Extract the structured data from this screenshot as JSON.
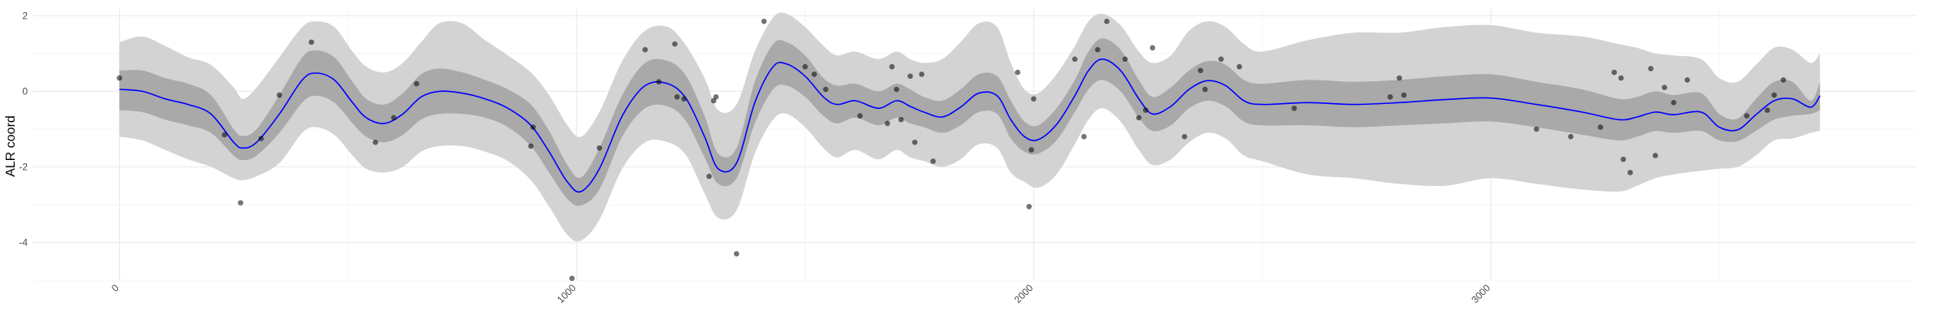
{
  "chart_data": {
    "type": "line",
    "title": "",
    "xlabel": "",
    "ylabel": "ALR coord",
    "xlim": [
      -190,
      3930
    ],
    "ylim": [
      -5,
      2.2
    ],
    "x_ticks": [
      0,
      1000,
      2000,
      3000
    ],
    "x_tick_labels": [
      "0",
      "1000",
      "2000",
      "3000"
    ],
    "y_ticks": [
      -4,
      -2,
      0,
      2
    ],
    "y_tick_labels": [
      "-4",
      "-2",
      "0",
      "2"
    ],
    "grid": true,
    "legend": "none",
    "colors": {
      "outer_band": "#d3d3d3",
      "inner_band": "#a9a9a9",
      "mean_line": "#0000ff",
      "points": "#000000",
      "grid_major": "#ebebeb",
      "grid_minor": "#f5f5f5"
    },
    "mean_curve": {
      "x": [
        0,
        50,
        100,
        150,
        200,
        250,
        270,
        300,
        350,
        400,
        430,
        470,
        510,
        540,
        580,
        620,
        660,
        700,
        750,
        800,
        850,
        900,
        940,
        980,
        1010,
        1050,
        1100,
        1150,
        1200,
        1240,
        1280,
        1310,
        1350,
        1390,
        1430,
        1460,
        1500,
        1540,
        1570,
        1610,
        1660,
        1700,
        1730,
        1760,
        1800,
        1840,
        1880,
        1920,
        1950,
        1980,
        2010,
        2050,
        2090,
        2120,
        2150,
        2190,
        2230,
        2260,
        2300,
        2340,
        2380,
        2420,
        2460,
        2500,
        2600,
        2700,
        2800,
        2900,
        3000,
        3100,
        3200,
        3280,
        3320,
        3360,
        3400,
        3460,
        3500,
        3540,
        3580,
        3620,
        3660,
        3700,
        3720
      ],
      "mean": [
        0.05,
        0,
        -0.2,
        -0.35,
        -0.6,
        -1.35,
        -1.5,
        -1.35,
        -0.6,
        0.3,
        0.48,
        0.3,
        -0.3,
        -0.7,
        -0.85,
        -0.6,
        -0.15,
        0,
        -0.05,
        -0.2,
        -0.45,
        -0.9,
        -1.6,
        -2.4,
        -2.65,
        -2.05,
        -0.65,
        0.15,
        0.2,
        -0.2,
        -1.2,
        -2.05,
        -1.9,
        -0.3,
        0.65,
        0.72,
        0.4,
        -0.15,
        -0.35,
        -0.25,
        -0.45,
        -0.25,
        -0.4,
        -0.55,
        -0.68,
        -0.42,
        -0.05,
        -0.12,
        -0.75,
        -1.2,
        -1.28,
        -0.88,
        -0.12,
        0.55,
        0.85,
        0.55,
        -0.2,
        -0.6,
        -0.4,
        0.05,
        0.28,
        0.15,
        -0.25,
        -0.35,
        -0.3,
        -0.35,
        -0.3,
        -0.22,
        -0.18,
        -0.35,
        -0.55,
        -0.75,
        -0.68,
        -0.55,
        -0.62,
        -0.55,
        -0.95,
        -1.02,
        -0.62,
        -0.25,
        -0.2,
        -0.42,
        -0.12
      ],
      "inner_lower": [
        -0.5,
        -0.55,
        -0.75,
        -0.9,
        -1.1,
        -1.7,
        -1.82,
        -1.7,
        -1.1,
        -0.3,
        -0.12,
        -0.3,
        -0.85,
        -1.2,
        -1.35,
        -1.15,
        -0.75,
        -0.6,
        -0.6,
        -0.7,
        -0.95,
        -1.45,
        -2.15,
        -2.85,
        -3.02,
        -2.6,
        -1.2,
        -0.45,
        -0.4,
        -0.8,
        -1.75,
        -2.45,
        -2.3,
        -0.85,
        0.05,
        0.15,
        -0.15,
        -0.65,
        -0.85,
        -0.7,
        -0.9,
        -0.7,
        -0.85,
        -0.95,
        -1.1,
        -0.9,
        -0.55,
        -0.6,
        -1.25,
        -1.6,
        -1.65,
        -1.3,
        -0.55,
        0.05,
        0.3,
        0,
        -0.7,
        -1.05,
        -0.9,
        -0.45,
        -0.25,
        -0.4,
        -0.8,
        -0.9,
        -0.9,
        -0.95,
        -0.9,
        -0.85,
        -0.8,
        -0.95,
        -1.15,
        -1.3,
        -1.2,
        -1.05,
        -1.1,
        -1.05,
        -1.3,
        -1.32,
        -1.05,
        -0.75,
        -0.65,
        -0.6,
        -0.5
      ],
      "inner_upper": [
        0.55,
        0.55,
        0.35,
        0.2,
        -0.1,
        -1.0,
        -1.18,
        -1.0,
        -0.1,
        0.9,
        1.08,
        0.9,
        0.25,
        -0.2,
        -0.35,
        -0.05,
        0.45,
        0.6,
        0.5,
        0.3,
        0.05,
        -0.35,
        -1.05,
        -1.95,
        -2.28,
        -1.5,
        -0.1,
        0.75,
        0.8,
        0.4,
        -0.65,
        -1.65,
        -1.5,
        0.25,
        1.25,
        1.3,
        0.95,
        0.35,
        0.15,
        0.2,
        0,
        0.2,
        0.05,
        -0.15,
        -0.25,
        0.05,
        0.45,
        0.4,
        -0.25,
        -0.8,
        -0.9,
        -0.45,
        0.3,
        1.05,
        1.4,
        1.1,
        0.3,
        -0.15,
        0.1,
        0.55,
        0.8,
        0.7,
        0.3,
        0.2,
        0.3,
        0.25,
        0.3,
        0.4,
        0.45,
        0.25,
        0.05,
        -0.2,
        -0.15,
        0,
        -0.1,
        -0.05,
        -0.6,
        -0.72,
        -0.2,
        0.25,
        0.25,
        -0.25,
        0.25
      ],
      "outer_lower": [
        -1.2,
        -1.3,
        -1.55,
        -1.8,
        -2.0,
        -2.3,
        -2.35,
        -2.25,
        -1.9,
        -1.1,
        -0.95,
        -1.15,
        -1.7,
        -2.05,
        -2.15,
        -2.0,
        -1.6,
        -1.45,
        -1.45,
        -1.6,
        -1.85,
        -2.35,
        -3.05,
        -3.8,
        -3.95,
        -3.4,
        -2.05,
        -1.35,
        -1.35,
        -1.7,
        -2.7,
        -3.35,
        -3.15,
        -1.65,
        -0.75,
        -0.6,
        -0.95,
        -1.5,
        -1.75,
        -1.55,
        -1.8,
        -1.55,
        -1.75,
        -1.85,
        -2.0,
        -1.8,
        -1.4,
        -1.5,
        -2.15,
        -2.4,
        -2.55,
        -2.2,
        -1.4,
        -0.75,
        -0.45,
        -0.8,
        -1.55,
        -1.95,
        -1.8,
        -1.35,
        -1.1,
        -1.25,
        -1.7,
        -1.85,
        -2.2,
        -2.3,
        -2.45,
        -2.5,
        -2.3,
        -2.45,
        -2.6,
        -2.65,
        -2.5,
        -2.3,
        -2.2,
        -2.1,
        -2.05,
        -2.0,
        -1.7,
        -1.3,
        -1.25,
        -1.1,
        -1.05
      ],
      "outer_upper": [
        1.3,
        1.45,
        1.2,
        0.9,
        0.7,
        0.1,
        -0.2,
        0.1,
        0.9,
        1.7,
        1.85,
        1.7,
        1.05,
        0.65,
        0.5,
        0.75,
        1.3,
        1.8,
        1.8,
        1.35,
        0.95,
        0.5,
        -0.1,
        -0.9,
        -1.2,
        -0.55,
        0.8,
        1.6,
        1.7,
        1.2,
        0.35,
        -0.5,
        -0.35,
        1.05,
        1.95,
        2.05,
        1.7,
        1.2,
        0.95,
        1.05,
        0.85,
        1.05,
        0.85,
        0.75,
        0.85,
        1.3,
        1.8,
        1.7,
        0.75,
        0.05,
        -0.05,
        0.45,
        1.2,
        1.85,
        2.05,
        1.75,
        1.05,
        0.75,
        0.95,
        1.6,
        1.85,
        1.7,
        1.25,
        1.05,
        1.35,
        1.55,
        1.55,
        1.7,
        1.75,
        1.55,
        1.45,
        1.25,
        1.15,
        1.0,
        0.95,
        0.85,
        0.35,
        0.25,
        0.7,
        1.15,
        1.1,
        0.75,
        1.0
      ]
    },
    "points": {
      "x": [
        0,
        230,
        265,
        310,
        350,
        420,
        560,
        600,
        650,
        900,
        905,
        990,
        1050,
        1150,
        1180,
        1215,
        1220,
        1235,
        1290,
        1300,
        1305,
        1350,
        1410,
        1500,
        1520,
        1545,
        1620,
        1680,
        1690,
        1700,
        1710,
        1730,
        1740,
        1755,
        1780,
        1965,
        1990,
        1995,
        2000,
        2090,
        2110,
        2140,
        2160,
        2200,
        2230,
        2245,
        2260,
        2330,
        2365,
        2375,
        2410,
        2450,
        2570,
        2780,
        2800,
        2810,
        3100,
        3175,
        3240,
        3270,
        3285,
        3290,
        3305,
        3350,
        3360,
        3380,
        3400,
        3430,
        3560,
        3605,
        3620,
        3640
      ],
      "y": [
        0.35,
        -1.15,
        -2.95,
        -1.25,
        -0.1,
        1.3,
        -1.35,
        -0.7,
        0.2,
        -1.45,
        -0.95,
        -4.95,
        -1.5,
        1.1,
        0.25,
        1.25,
        -0.15,
        -0.2,
        -2.25,
        -0.25,
        -0.15,
        -4.3,
        1.85,
        0.65,
        0.45,
        0.05,
        -0.65,
        -0.85,
        0.65,
        0.05,
        -0.75,
        0.4,
        -1.35,
        0.45,
        -1.85,
        0.5,
        -3.05,
        -1.55,
        -0.2,
        0.85,
        -1.2,
        1.1,
        1.85,
        0.85,
        -0.7,
        -0.5,
        1.15,
        -1.2,
        0.55,
        0.05,
        0.85,
        0.65,
        -0.45,
        -0.15,
        0.35,
        -0.1,
        -1.0,
        -1.2,
        -0.95,
        0.5,
        0.35,
        -1.8,
        -2.15,
        0.6,
        -1.7,
        0.1,
        -0.3,
        0.3,
        -0.65,
        -0.5,
        -0.1,
        0.3
      ]
    }
  }
}
